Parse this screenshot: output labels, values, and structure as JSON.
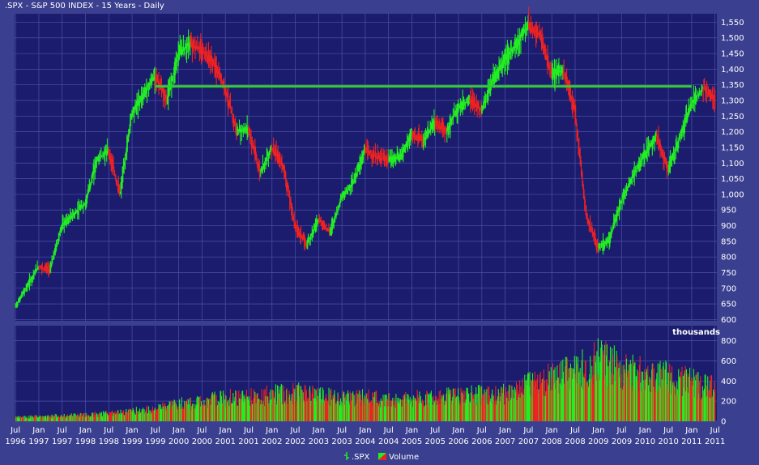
{
  "window": {
    "title": ".SPX - S&P 500 INDEX - 15 Years - Daily"
  },
  "colors": {
    "background": "#3a3f8f",
    "plot": "#1c1c6e",
    "grid": "#4a52a8",
    "up": "#22ee22",
    "down": "#ee2222",
    "reference_line": "#33cc33",
    "text": "#ffffff"
  },
  "chart_data": {
    "type": "bar",
    "chart_style": "ohlc-bars-with-volume",
    "price_panel": {
      "yticks": [
        600,
        650,
        700,
        750,
        800,
        850,
        900,
        950,
        1000,
        1050,
        1100,
        1150,
        1200,
        1250,
        1300,
        1350,
        1400,
        1450,
        1500,
        1550
      ],
      "ytick_labels": [
        "600",
        "650",
        "700",
        "750",
        "800",
        "850",
        "900",
        "950",
        "1,000",
        "1,050",
        "1,100",
        "1,150",
        "1,200",
        "1,250",
        "1,300",
        "1,350",
        "1,400",
        "1,450",
        "1,500",
        "1,550"
      ],
      "ylim": [
        596,
        1577
      ],
      "horizontal_line": {
        "value": 1345,
        "from": "1999-07",
        "to": "2011-01"
      },
      "series": [
        {
          "name": ".SPX",
          "x": [
            "1996-07",
            "1996-10",
            "1997-01",
            "1997-04",
            "1997-07",
            "1997-10",
            "1998-01",
            "1998-04",
            "1998-07",
            "1998-10",
            "1999-01",
            "1999-04",
            "1999-07",
            "1999-10",
            "2000-01",
            "2000-04",
            "2000-07",
            "2000-10",
            "2001-01",
            "2001-04",
            "2001-07",
            "2001-10",
            "2002-01",
            "2002-04",
            "2002-07",
            "2002-10",
            "2003-01",
            "2003-04",
            "2003-07",
            "2003-10",
            "2004-01",
            "2004-04",
            "2004-07",
            "2004-10",
            "2005-01",
            "2005-04",
            "2005-07",
            "2005-10",
            "2006-01",
            "2006-04",
            "2006-07",
            "2006-10",
            "2007-01",
            "2007-04",
            "2007-07",
            "2007-10",
            "2008-01",
            "2008-04",
            "2008-07",
            "2008-10",
            "2009-01",
            "2009-04",
            "2009-07",
            "2009-10",
            "2010-01",
            "2010-04",
            "2010-07",
            "2010-10",
            "2011-01",
            "2011-04",
            "2011-07"
          ],
          "values": [
            640,
            705,
            770,
            760,
            900,
            935,
            970,
            1110,
            1140,
            1000,
            1260,
            1320,
            1380,
            1300,
            1450,
            1480,
            1460,
            1420,
            1340,
            1200,
            1210,
            1070,
            1150,
            1090,
            900,
            840,
            920,
            880,
            990,
            1040,
            1140,
            1120,
            1110,
            1120,
            1190,
            1170,
            1230,
            1200,
            1280,
            1300,
            1270,
            1370,
            1430,
            1480,
            1540,
            1510,
            1380,
            1400,
            1270,
            930,
            830,
            860,
            980,
            1060,
            1130,
            1190,
            1080,
            1180,
            1290,
            1340,
            1310
          ]
        }
      ]
    },
    "volume_panel": {
      "label": "thousands",
      "yticks": [
        0,
        200,
        400,
        600,
        800
      ],
      "ytick_labels": [
        "0",
        "200",
        "400",
        "600",
        "800"
      ],
      "ylim": [
        0,
        950
      ],
      "series": [
        {
          "name": "Volume",
          "x": [
            "1996-07",
            "1997-01",
            "1997-07",
            "1998-01",
            "1998-07",
            "1999-01",
            "1999-07",
            "2000-01",
            "2000-07",
            "2001-01",
            "2001-07",
            "2002-01",
            "2002-07",
            "2003-01",
            "2003-07",
            "2004-01",
            "2004-07",
            "2005-01",
            "2005-07",
            "2006-01",
            "2006-07",
            "2007-01",
            "2007-07",
            "2008-01",
            "2008-07",
            "2009-01",
            "2009-07",
            "2010-01",
            "2010-07",
            "2011-01",
            "2011-07"
          ],
          "values": [
            40,
            45,
            55,
            60,
            80,
            100,
            120,
            170,
            190,
            230,
            240,
            260,
            280,
            250,
            230,
            230,
            210,
            220,
            230,
            250,
            260,
            270,
            360,
            430,
            480,
            620,
            500,
            460,
            440,
            380,
            320
          ]
        }
      ]
    },
    "x_tick_labels": [
      {
        "month": "Jul",
        "year": "1996",
        "date": "1996-07"
      },
      {
        "month": "Jan",
        "year": "1997",
        "date": "1997-01"
      },
      {
        "month": "Jul",
        "year": "1997",
        "date": "1997-07"
      },
      {
        "month": "Jan",
        "year": "1998",
        "date": "1998-01"
      },
      {
        "month": "Jul",
        "year": "1998",
        "date": "1998-07"
      },
      {
        "month": "Jan",
        "year": "1999",
        "date": "1999-01"
      },
      {
        "month": "Jul",
        "year": "1999",
        "date": "1999-07"
      },
      {
        "month": "Jan",
        "year": "2000",
        "date": "2000-01"
      },
      {
        "month": "Jul",
        "year": "2000",
        "date": "2000-07"
      },
      {
        "month": "Jan",
        "year": "2001",
        "date": "2001-01"
      },
      {
        "month": "Jul",
        "year": "2001",
        "date": "2001-07"
      },
      {
        "month": "Jan",
        "year": "2002",
        "date": "2002-01"
      },
      {
        "month": "Jul",
        "year": "2002",
        "date": "2002-07"
      },
      {
        "month": "Jan",
        "year": "2003",
        "date": "2003-01"
      },
      {
        "month": "Jul",
        "year": "2003",
        "date": "2003-07"
      },
      {
        "month": "Jan",
        "year": "2004",
        "date": "2004-01"
      },
      {
        "month": "Jul",
        "year": "2004",
        "date": "2004-07"
      },
      {
        "month": "Jan",
        "year": "2005",
        "date": "2005-01"
      },
      {
        "month": "Jul",
        "year": "2005",
        "date": "2005-07"
      },
      {
        "month": "Jan",
        "year": "2006",
        "date": "2006-01"
      },
      {
        "month": "Jul",
        "year": "2006",
        "date": "2006-07"
      },
      {
        "month": "Jan",
        "year": "2007",
        "date": "2007-01"
      },
      {
        "month": "Jul",
        "year": "2007",
        "date": "2007-07"
      },
      {
        "month": "Jan",
        "year": "2008",
        "date": "2008-01"
      },
      {
        "month": "Jul",
        "year": "2008",
        "date": "2008-07"
      },
      {
        "month": "Jan",
        "year": "2009",
        "date": "2009-01"
      },
      {
        "month": "Jul",
        "year": "2009",
        "date": "2009-07"
      },
      {
        "month": "Jan",
        "year": "2010",
        "date": "2010-01"
      },
      {
        "month": "Jul",
        "year": "2010",
        "date": "2010-07"
      },
      {
        "month": "Jan",
        "year": "2011",
        "date": "2011-01"
      },
      {
        "month": "Jul",
        "year": "2011",
        "date": "2011-07"
      }
    ],
    "grid": true,
    "legend": {
      "placement": "bottom-center",
      "items": [
        {
          "label": ".SPX",
          "icon": "ohlc-bar-icon"
        },
        {
          "label": "Volume",
          "icon": "volume-bar-icon"
        }
      ]
    }
  }
}
